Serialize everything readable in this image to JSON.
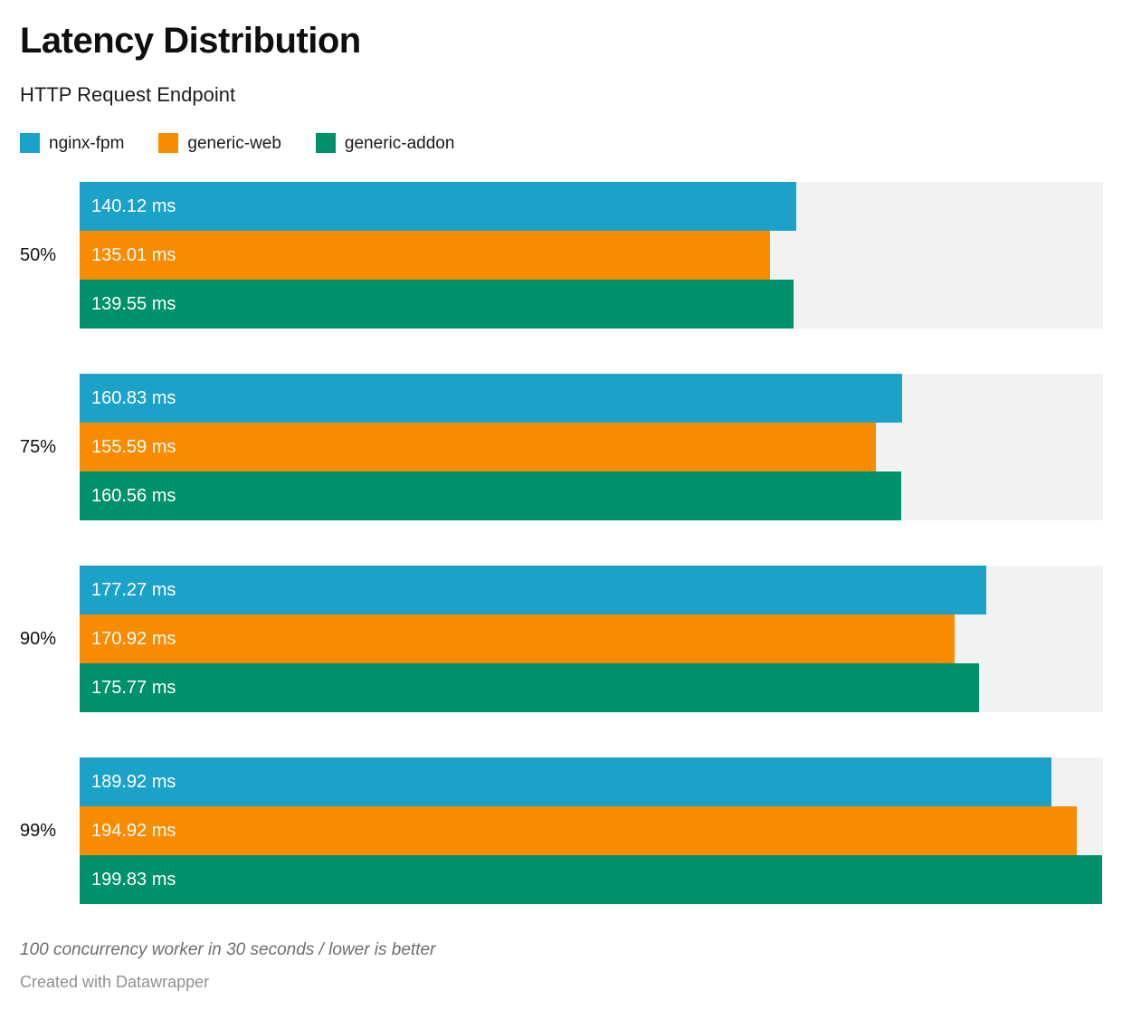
{
  "header": {
    "title": "Latency Distribution",
    "subtitle": "HTTP Request Endpoint"
  },
  "legend": [
    {
      "label": "nginx-fpm",
      "color": "#1CA2C9",
      "icon": "swatch-blue"
    },
    {
      "label": "generic-web",
      "color": "#F88C00",
      "icon": "swatch-orange"
    },
    {
      "label": "generic-addon",
      "color": "#00906C",
      "icon": "swatch-green"
    }
  ],
  "chart_data": {
    "type": "bar",
    "orientation": "horizontal",
    "title": "Latency Distribution",
    "subtitle": "HTTP Request Endpoint",
    "categories": [
      "50%",
      "75%",
      "90%",
      "99%"
    ],
    "series": [
      {
        "name": "nginx-fpm",
        "color": "#1CA2C9",
        "values": [
          140.12,
          160.83,
          177.27,
          189.92
        ]
      },
      {
        "name": "generic-web",
        "color": "#F88C00",
        "values": [
          135.01,
          155.59,
          170.92,
          194.92
        ]
      },
      {
        "name": "generic-addon",
        "color": "#00906C",
        "values": [
          139.55,
          160.56,
          175.77,
          199.83
        ]
      }
    ],
    "value_suffix": " ms",
    "value_decimals": 2,
    "xlim": [
      0,
      200
    ],
    "xlabel": "",
    "ylabel": "",
    "grid": false,
    "legend_position": "top",
    "labels_inside_bars": true,
    "track_color": "#F2F2F2"
  },
  "footer": {
    "note": "100 concurrency worker in 30 seconds / lower is better",
    "attribution": "Created with Datawrapper"
  }
}
